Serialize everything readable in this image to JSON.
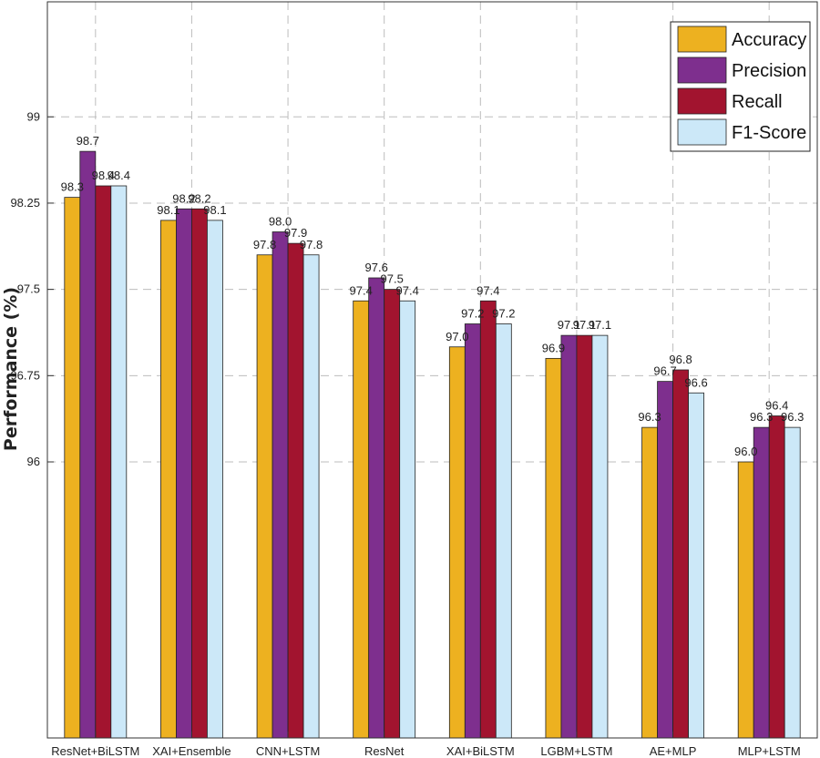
{
  "chart_data": {
    "type": "bar",
    "ylabel": "Performance (%)",
    "ylim": [
      93.6,
      100.0
    ],
    "yticks": [
      96,
      96.75,
      97.5,
      98.25,
      99
    ],
    "grid": true,
    "legend_position": "top-right",
    "categories": [
      "ResNet+BiLSTM",
      "XAI+Ensemble",
      "CNN+LSTM",
      "ResNet",
      "XAI+BiLSTM",
      "LGBM+LSTM",
      "AE+MLP",
      "MLP+LSTM"
    ],
    "series": [
      {
        "name": "Accuracy",
        "color": "#EDB120",
        "values": [
          98.3,
          98.1,
          97.8,
          97.4,
          97.0,
          96.9,
          96.3,
          96.0
        ],
        "labels": [
          "98.3",
          "98.1",
          "97.8",
          "97.4",
          "97.0",
          "96.9",
          "96.3",
          "96.0"
        ]
      },
      {
        "name": "Precision",
        "color": "#7E2F8E",
        "values": [
          98.7,
          98.2,
          98.0,
          97.6,
          97.2,
          97.1,
          96.7,
          96.3
        ],
        "labels": [
          "98.7",
          "98.2",
          "98.0",
          "97.6",
          "97.2",
          "97.1",
          "96.7",
          "96.3"
        ]
      },
      {
        "name": "Recall",
        "color": "#A2142F",
        "values": [
          98.4,
          98.2,
          97.9,
          97.5,
          97.4,
          97.1,
          96.8,
          96.4
        ],
        "labels": [
          "98.4",
          "98.2",
          "97.9",
          "97.5",
          "97.4",
          "97.1",
          "96.8",
          "96.4"
        ]
      },
      {
        "name": "F1-Score",
        "color": "#CCE8F8",
        "values": [
          98.4,
          98.1,
          97.8,
          97.4,
          97.2,
          97.1,
          96.6,
          96.3
        ],
        "labels": [
          "98.4",
          "98.1",
          "97.8",
          "97.4",
          "97.2",
          "97.1",
          "96.6",
          "96.3"
        ]
      }
    ]
  }
}
